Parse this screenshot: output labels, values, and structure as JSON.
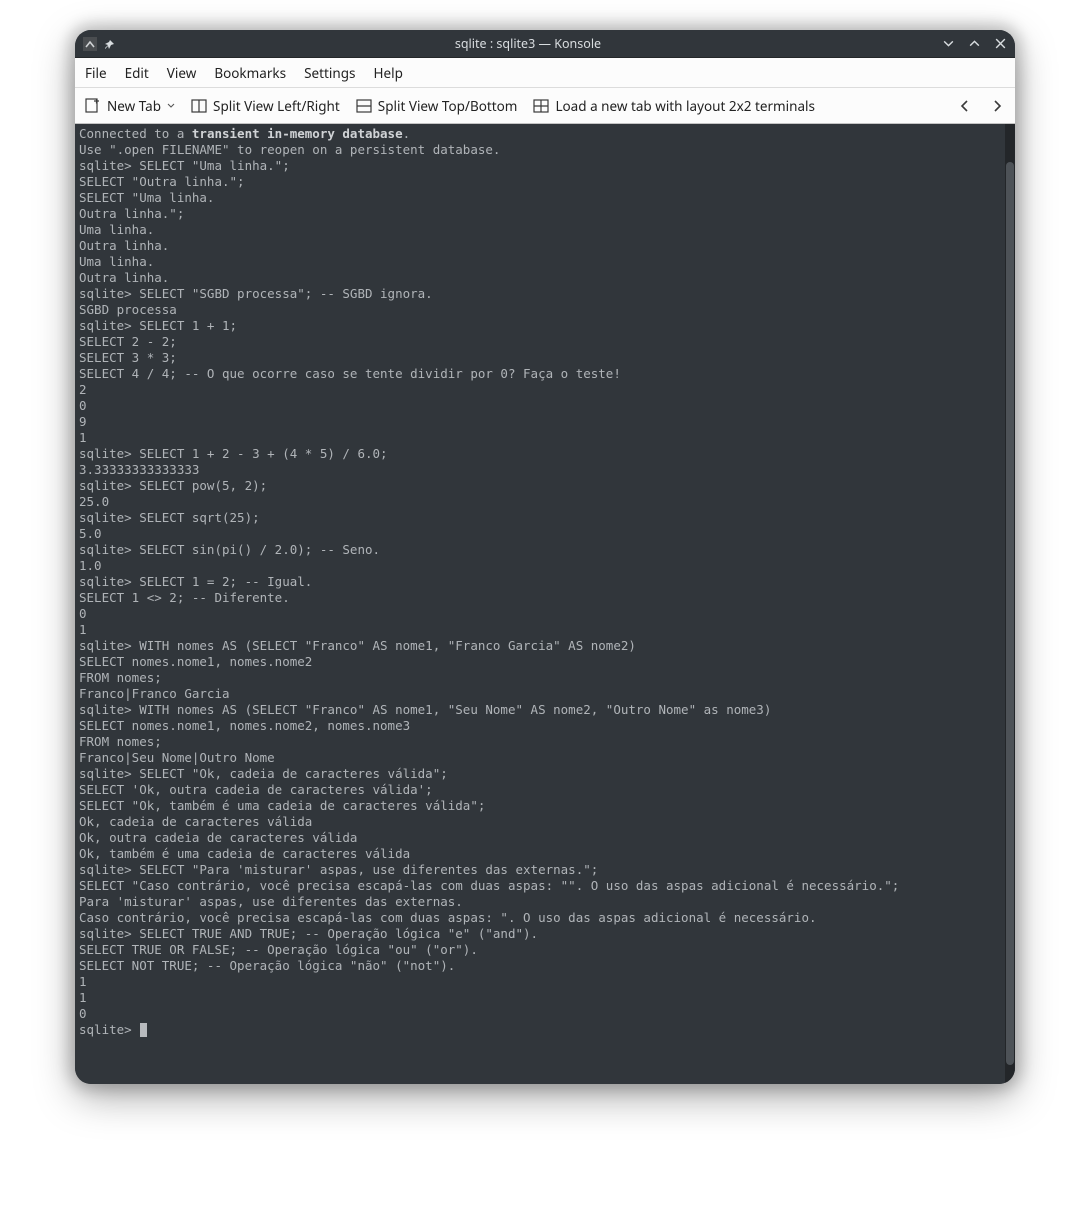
{
  "titlebar": {
    "title": "sqlite : sqlite3 — Konsole"
  },
  "menubar": {
    "items": [
      "File",
      "Edit",
      "View",
      "Bookmarks",
      "Settings",
      "Help"
    ]
  },
  "toolbar": {
    "new_tab": "New Tab",
    "split_lr": "Split View Left/Right",
    "split_tb": "Split View Top/Bottom",
    "load_layout": "Load a new tab with layout 2x2 terminals"
  },
  "terminal": {
    "prompt": "sqlite> ",
    "l1a": "Connected to a ",
    "l1b": "transient in-memory database",
    "l1c": ".",
    "l2": "Use \".open FILENAME\" to reopen on a persistent database.",
    "l3": "sqlite> SELECT \"Uma linha.\";",
    "l4": "SELECT \"Outra linha.\";",
    "l5": "SELECT \"Uma linha.",
    "l6": "Outra linha.\";",
    "l7": "Uma linha.",
    "l8": "Outra linha.",
    "l9": "Uma linha.",
    "l10": "Outra linha.",
    "l11": "sqlite> SELECT \"SGBD processa\"; -- SGBD ignora.",
    "l12": "SGBD processa",
    "l13": "sqlite> SELECT 1 + 1;",
    "l14": "SELECT 2 - 2;",
    "l15": "SELECT 3 * 3;",
    "l16": "SELECT 4 / 4; -- O que ocorre caso se tente dividir por 0? Faça o teste!",
    "l17": "2",
    "l18": "0",
    "l19": "9",
    "l20": "1",
    "l21": "sqlite> SELECT 1 + 2 - 3 + (4 * 5) / 6.0;",
    "l22": "3.33333333333333",
    "l23": "sqlite> SELECT pow(5, 2);",
    "l24": "25.0",
    "l25": "sqlite> SELECT sqrt(25);",
    "l26": "5.0",
    "l27": "sqlite> SELECT sin(pi() / 2.0); -- Seno.",
    "l28": "1.0",
    "l29": "sqlite> SELECT 1 = 2; -- Igual.",
    "l30": "SELECT 1 <> 2; -- Diferente.",
    "l31": "0",
    "l32": "1",
    "l33": "sqlite> WITH nomes AS (SELECT \"Franco\" AS nome1, \"Franco Garcia\" AS nome2)",
    "l34": "SELECT nomes.nome1, nomes.nome2",
    "l35": "FROM nomes;",
    "l36": "Franco|Franco Garcia",
    "l37": "sqlite> WITH nomes AS (SELECT \"Franco\" AS nome1, \"Seu Nome\" AS nome2, \"Outro Nome\" as nome3)",
    "l38": "SELECT nomes.nome1, nomes.nome2, nomes.nome3",
    "l39": "FROM nomes;",
    "l40": "Franco|Seu Nome|Outro Nome",
    "l41": "sqlite> SELECT \"Ok, cadeia de caracteres válida\";",
    "l42": "SELECT 'Ok, outra cadeia de caracteres válida';",
    "l43": "SELECT \"Ok, também é uma cadeia de caracteres válida\";",
    "l44": "Ok, cadeia de caracteres válida",
    "l45": "Ok, outra cadeia de caracteres válida",
    "l46": "Ok, também é uma cadeia de caracteres válida",
    "l47": "sqlite> SELECT \"Para 'misturar' aspas, use diferentes das externas.\";",
    "l48": "SELECT \"Caso contrário, você precisa escapá-las com duas aspas: \"\". O uso das aspas adicional é necessário.\";",
    "l49": "Para 'misturar' aspas, use diferentes das externas.",
    "l50": "Caso contrário, você precisa escapá-las com duas aspas: \". O uso das aspas adicional é necessário.",
    "l51": "sqlite> SELECT TRUE AND TRUE; -- Operação lógica \"e\" (\"and\").",
    "l52": "SELECT TRUE OR FALSE; -- Operação lógica \"ou\" (\"or\").",
    "l53": "SELECT NOT TRUE; -- Operação lógica \"não\" (\"not\").",
    "l54": "1",
    "l55": "1",
    "l56": "0"
  },
  "scrollbar": {
    "thumb_top_pct": 4,
    "thumb_height_pct": 94
  },
  "colors": {
    "window_bg": "#31363b",
    "menubar_bg": "#fcfcfc",
    "terminal_fg": "#b0b4b8",
    "terminal_bold": "#d0d3d6"
  }
}
